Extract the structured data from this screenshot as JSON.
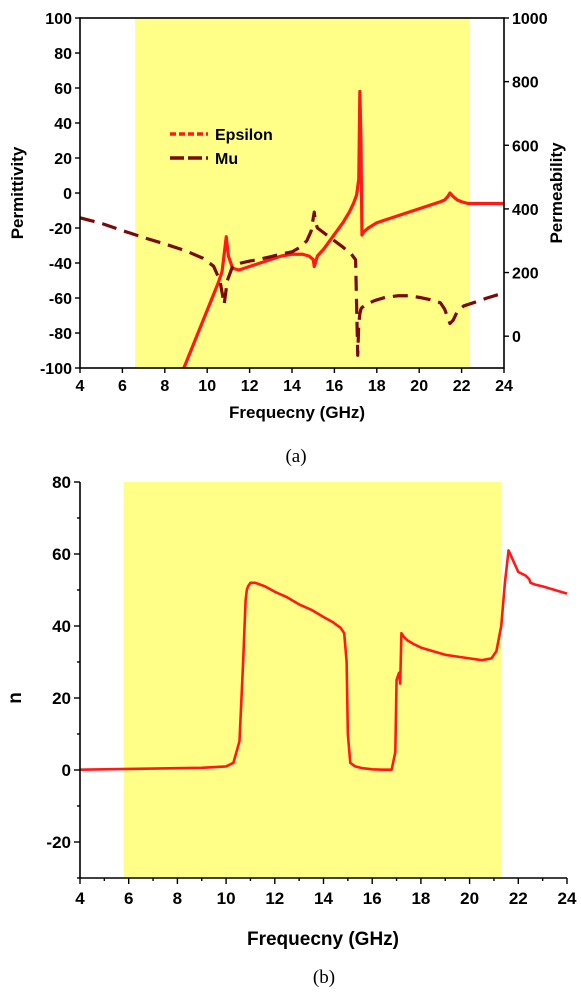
{
  "chart_data": [
    {
      "type": "line",
      "caption": "(a)",
      "xlabel": "Frequecny (GHz)",
      "ylabel": "Permittivity",
      "ylabel_right": "Permeability",
      "xlim": [
        4,
        24
      ],
      "ylim": [
        -100,
        100
      ],
      "ylim_right": [
        -100,
        1000
      ],
      "x_ticks": [
        4,
        6,
        8,
        10,
        12,
        14,
        16,
        18,
        20,
        22,
        24
      ],
      "y_ticks": [
        -100,
        -80,
        -60,
        -40,
        -20,
        0,
        20,
        40,
        60,
        80,
        100
      ],
      "y_ticks_right": [
        0,
        200,
        400,
        600,
        800,
        1000
      ],
      "highlight_band": {
        "x": [
          6.6,
          22.4
        ],
        "color": "#ffff88"
      },
      "legend": [
        {
          "label": "Epsilon",
          "style": "short-dash",
          "color": "#ff1a1a"
        },
        {
          "label": "Mu",
          "style": "long-dash",
          "color": "#7a0a0a"
        }
      ],
      "series": [
        {
          "name": "Epsilon",
          "axis": "left",
          "color": "#ff1a1a",
          "x": [
            8.9,
            9.3,
            9.7,
            10.1,
            10.5,
            10.7,
            10.8,
            10.9,
            11.0,
            11.2,
            11.5,
            12.0,
            12.5,
            13.0,
            13.5,
            14.0,
            14.5,
            14.8,
            15.0,
            15.05,
            15.2,
            15.5,
            15.8,
            16.1,
            16.4,
            16.7,
            16.9,
            17.05,
            17.15,
            17.2,
            17.25,
            17.3,
            17.4,
            17.6,
            18.0,
            18.5,
            19.0,
            19.5,
            20.0,
            20.5,
            21.0,
            21.2,
            21.35,
            21.45,
            21.6,
            21.8,
            22.0,
            22.3,
            22.6,
            23.0,
            23.5,
            24.0
          ],
          "y": [
            -100,
            -88,
            -76,
            -64,
            -52,
            -45,
            -35,
            -25,
            -36,
            -43,
            -44,
            -42,
            -40,
            -38,
            -36,
            -35,
            -35,
            -36,
            -38,
            -42,
            -36,
            -32,
            -27,
            -22,
            -17,
            -11,
            -6,
            -1,
            8,
            58,
            32,
            -24,
            -22,
            -20,
            -17,
            -15,
            -13,
            -11,
            -9,
            -7,
            -5,
            -4,
            -2,
            0,
            -2,
            -4,
            -5,
            -6,
            -6,
            -6,
            -6,
            -6
          ]
        },
        {
          "name": "Mu",
          "axis": "right",
          "color": "#7a0a0a",
          "x": [
            4,
            5,
            6,
            7,
            8,
            9,
            9.8,
            10.3,
            10.6,
            10.8,
            10.95,
            11.2,
            11.6,
            12,
            12.5,
            13,
            13.5,
            14,
            14.4,
            14.7,
            14.9,
            15.0,
            15.05,
            15.1,
            15.2,
            15.6,
            16.0,
            16.4,
            16.8,
            17.0,
            17.1,
            17.15,
            17.2,
            17.25,
            17.3,
            17.5,
            17.9,
            18.4,
            19.0,
            19.5,
            20.0,
            20.5,
            21.0,
            21.2,
            21.35,
            21.45,
            21.6,
            21.8,
            22.1,
            22.6,
            23.2,
            23.7,
            24.0
          ],
          "y": [
            372,
            355,
            332,
            310,
            290,
            268,
            245,
            220,
            175,
            100,
            175,
            220,
            230,
            236,
            242,
            250,
            258,
            265,
            280,
            300,
            330,
            370,
            390,
            360,
            340,
            320,
            300,
            280,
            258,
            240,
            -60,
            40,
            70,
            85,
            90,
            100,
            112,
            122,
            127,
            127,
            122,
            115,
            105,
            85,
            58,
            40,
            50,
            78,
            95,
            106,
            120,
            130,
            135
          ]
        }
      ]
    },
    {
      "type": "line",
      "caption": "(b)",
      "xlabel": "Frequecny (GHz)",
      "ylabel": "n",
      "xlim": [
        4,
        24
      ],
      "ylim": [
        -30,
        80
      ],
      "x_ticks": [
        4,
        6,
        8,
        10,
        12,
        14,
        16,
        18,
        20,
        22,
        24
      ],
      "y_ticks": [
        -20,
        0,
        20,
        40,
        60,
        80
      ],
      "highlight_band": {
        "x": [
          5.8,
          21.3
        ],
        "color": "#ffff88"
      },
      "series": [
        {
          "name": "",
          "color": "#ff1a1a",
          "x": [
            4,
            5,
            6,
            7,
            8,
            9,
            10,
            10.3,
            10.55,
            10.7,
            10.8,
            10.85,
            10.9,
            11.0,
            11.2,
            11.6,
            12,
            12.5,
            13,
            13.5,
            14,
            14.4,
            14.7,
            14.85,
            14.95,
            15.0,
            15.1,
            15.3,
            15.6,
            16.0,
            16.4,
            16.8,
            16.95,
            17.0,
            17.05,
            17.1,
            17.15,
            17.2,
            17.3,
            17.45,
            17.7,
            18.0,
            18.5,
            19.0,
            19.5,
            20.0,
            20.5,
            20.9,
            21.1,
            21.3,
            21.45,
            21.6,
            21.8,
            22.0,
            22.3,
            22.45,
            22.5,
            22.7,
            23.0,
            23.5,
            24.0
          ],
          "y": [
            0.1,
            0.2,
            0.3,
            0.4,
            0.5,
            0.6,
            1.0,
            2.0,
            8,
            30,
            47,
            50,
            51,
            52,
            52,
            51,
            49.5,
            48,
            46,
            44.5,
            42.5,
            41,
            39.5,
            38,
            30,
            10,
            2,
            1,
            0.5,
            0.2,
            0.1,
            0.1,
            5,
            25,
            26,
            27,
            24,
            38,
            37,
            36,
            35,
            34,
            33,
            32,
            31.5,
            31,
            30.5,
            31,
            33,
            40,
            52,
            61,
            58,
            55,
            54,
            53,
            52,
            51.5,
            51,
            50,
            49
          ]
        }
      ]
    }
  ]
}
